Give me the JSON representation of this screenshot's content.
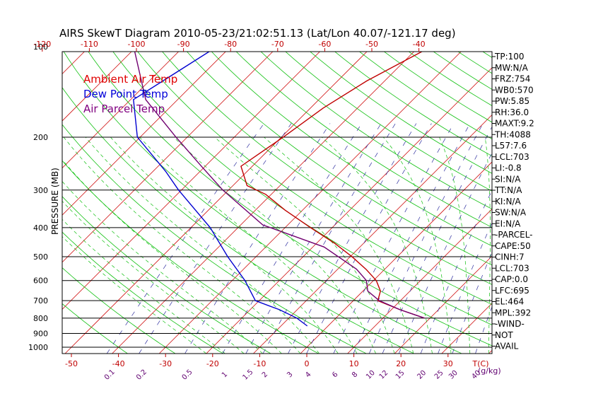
{
  "chart_data": {
    "type": "line",
    "title": "AIRS SkewT Diagram 2010-05-23/21:02:51.13 (Lat/Lon 40.07/-121.17 deg)",
    "ylabel": "PRESSURE (MB)",
    "x_unit_label": "T(C)",
    "mixing_unit_label": "(g/kg)",
    "log_pressure_axis": true,
    "ylim": [
      1000,
      100
    ],
    "pressure_ticks": [
      100,
      200,
      300,
      400,
      500,
      600,
      700,
      800,
      900,
      1000
    ],
    "bottom_temp_ticks": [
      -50,
      -40,
      -30,
      -20,
      -10,
      0,
      10,
      20,
      30
    ],
    "top_temp_ticks": [
      -120,
      -110,
      -100,
      -90,
      -80,
      -70,
      -60,
      -50,
      -40
    ],
    "mixing_ratio_labels": [
      "0.1",
      "0.2",
      "0.5",
      "1",
      "1.5",
      "2",
      "3",
      "4",
      "6",
      "8",
      "10",
      "12",
      "15",
      "20",
      "25",
      "30",
      "40"
    ],
    "legend": [
      {
        "label": "Ambient Air Temp",
        "color": "#e00000"
      },
      {
        "label": "Dew Point Temp",
        "color": "#0000d8"
      },
      {
        "label": "Air Parcel Temp",
        "color": "#800080"
      }
    ],
    "series": [
      {
        "name": "Ambient Air Temp",
        "color": "#c00000",
        "points": [
          [
            100,
            -37.4
          ],
          [
            130,
            -43.8
          ],
          [
            160,
            -47.3
          ],
          [
            200,
            -49.6
          ],
          [
            250,
            -52.4
          ],
          [
            290,
            -47.0
          ],
          [
            310,
            -41.2
          ],
          [
            350,
            -33.7
          ],
          [
            400,
            -24.6
          ],
          [
            450,
            -16.3
          ],
          [
            500,
            -9.6
          ],
          [
            550,
            -4.0
          ],
          [
            600,
            0.6
          ],
          [
            650,
            3.7
          ],
          [
            700,
            5.2
          ],
          [
            750,
            11.8
          ],
          [
            800,
            18.8
          ]
        ]
      },
      {
        "name": "Dew Point Temp",
        "color": "#0000d0",
        "points": [
          [
            100,
            -82.9
          ],
          [
            150,
            -89.4
          ],
          [
            200,
            -80.6
          ],
          [
            260,
            -67.3
          ],
          [
            300,
            -60.6
          ],
          [
            400,
            -45.9
          ],
          [
            500,
            -36.0
          ],
          [
            600,
            -27.3
          ],
          [
            700,
            -20.8
          ],
          [
            750,
            -13.8
          ],
          [
            800,
            -8.3
          ],
          [
            850,
            -4.4
          ]
        ]
      },
      {
        "name": "Air Parcel Temp",
        "color": "#700070",
        "points": [
          [
            100,
            -100.6
          ],
          [
            150,
            -86.8
          ],
          [
            200,
            -72.4
          ],
          [
            250,
            -60.8
          ],
          [
            300,
            -51.2
          ],
          [
            392,
            -35.3
          ],
          [
            464,
            -17.6
          ],
          [
            550,
            -6.0
          ],
          [
            600,
            -1.5
          ],
          [
            650,
            1.0
          ],
          [
            700,
            5.5
          ],
          [
            750,
            11.8
          ],
          [
            800,
            18.8
          ]
        ]
      }
    ]
  },
  "stats": [
    "TP:100",
    "MW:N/A",
    "FRZ:754",
    "WB0:570",
    "PW:5.85",
    "RH:36.0",
    "MAXT:9.2",
    "TH:4088",
    "L57:7.6",
    "LCL:703",
    "LI:-0.8",
    "SI:N/A",
    "TT:N/A",
    "KI:N/A",
    "SW:N/A",
    "EI:N/A",
    "-PARCEL-",
    "CAPE:50",
    "CINH:7",
    "LCL:703",
    "CAP:0.0",
    "LFC:695",
    "EL:464",
    "MPL:392",
    "-WIND-",
    "NOT",
    "AVAIL"
  ],
  "colors": {
    "frame": "#000000",
    "isotherm": "#d01010",
    "dry_adiabat": "#10c010",
    "moist_adiabat": "#10c010",
    "mixing_ratio": "#3030a0",
    "temp_tick_labels": "#c00000",
    "mixing_labels": "#600070"
  }
}
